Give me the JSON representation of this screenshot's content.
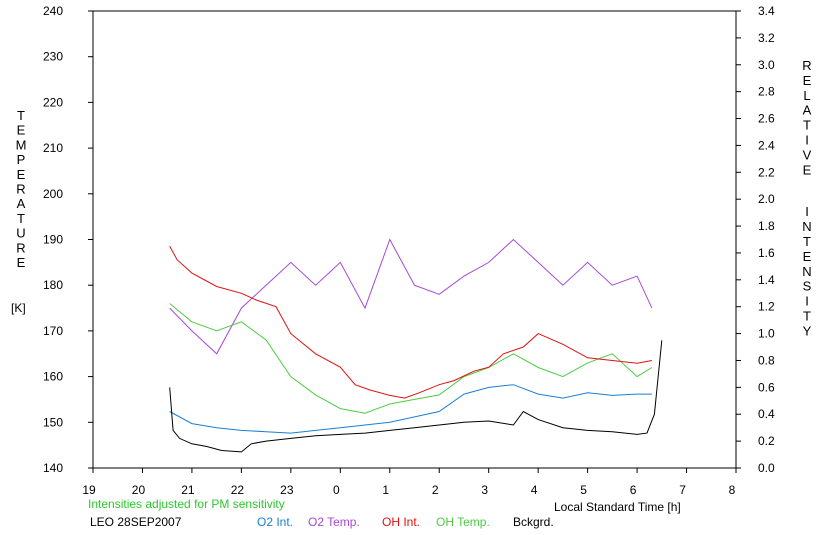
{
  "chart_data": {
    "type": "line",
    "left_axis": {
      "label": "TEMPERATURE",
      "unit": "[K]",
      "ylim": [
        140,
        240
      ],
      "ticks": [
        "140",
        "150",
        "160",
        "170",
        "180",
        "190",
        "200",
        "210",
        "220",
        "230",
        "240"
      ]
    },
    "right_axis": {
      "label": "RELATIVE INTENSITY",
      "ylim": [
        0.0,
        3.4
      ],
      "ticks": [
        "0.0",
        "0.2",
        "0.4",
        "0.6",
        "0.8",
        "1.0",
        "1.2",
        "1.4",
        "1.6",
        "1.8",
        "2.0",
        "2.2",
        "2.4",
        "2.6",
        "2.8",
        "3.0",
        "3.2",
        "3.4"
      ]
    },
    "x_axis": {
      "label": "Local Standard Time [h]",
      "ticks": [
        "19",
        "20",
        "21",
        "22",
        "23",
        "0",
        "1",
        "2",
        "3",
        "4",
        "5",
        "6",
        "7",
        "8"
      ]
    },
    "note": "Intensities adjusted for PM sensitivity",
    "site_date": "LEO 28SEP2007",
    "grid": false,
    "legend_position": "bottom",
    "series": [
      {
        "name": "O2 Int.",
        "axis": "right",
        "color": "#1a7fd6",
        "x": [
          20.55,
          21.0,
          21.5,
          22.0,
          22.5,
          23.0,
          23.5,
          24.0,
          24.5,
          25.0,
          25.5,
          26.0,
          26.5,
          27.0,
          27.5,
          28.0,
          28.5,
          29.0,
          29.5,
          30.0,
          30.3
        ],
        "y": [
          0.42,
          0.33,
          0.3,
          0.28,
          0.27,
          0.26,
          0.28,
          0.3,
          0.32,
          0.34,
          0.38,
          0.42,
          0.55,
          0.6,
          0.62,
          0.55,
          0.52,
          0.56,
          0.54,
          0.55,
          0.55
        ]
      },
      {
        "name": "O2 Temp.",
        "axis": "left",
        "color": "#a64ad6",
        "x": [
          20.55,
          21.0,
          21.5,
          22.0,
          22.5,
          23.0,
          23.5,
          24.0,
          24.5,
          25.0,
          25.5,
          26.0,
          26.5,
          27.0,
          27.5,
          28.0,
          28.5,
          29.0,
          29.5,
          30.0,
          30.3
        ],
        "y": [
          175,
          170,
          165,
          175,
          180,
          185,
          180,
          185,
          175,
          190,
          180,
          178,
          182,
          185,
          190,
          185,
          180,
          185,
          180,
          182,
          175
        ]
      },
      {
        "name": "OH Int.",
        "axis": "right",
        "color": "#e01010",
        "x": [
          20.55,
          20.7,
          21.0,
          21.5,
          22.0,
          22.3,
          22.7,
          23.0,
          23.5,
          24.0,
          24.3,
          24.6,
          25.0,
          25.3,
          25.6,
          26.0,
          26.3,
          26.7,
          27.0,
          27.3,
          27.7,
          28.0,
          28.5,
          29.0,
          29.5,
          30.0,
          30.3
        ],
        "y": [
          1.65,
          1.55,
          1.45,
          1.35,
          1.3,
          1.25,
          1.2,
          1.0,
          0.85,
          0.75,
          0.62,
          0.58,
          0.54,
          0.52,
          0.56,
          0.62,
          0.65,
          0.72,
          0.75,
          0.85,
          0.9,
          1.0,
          0.92,
          0.82,
          0.8,
          0.78,
          0.8
        ]
      },
      {
        "name": "OH Temp.",
        "axis": "left",
        "color": "#4ccc44",
        "x": [
          20.55,
          21.0,
          21.5,
          22.0,
          22.5,
          23.0,
          23.5,
          24.0,
          24.5,
          25.0,
          25.5,
          26.0,
          26.5,
          27.0,
          27.5,
          28.0,
          28.5,
          29.0,
          29.5,
          30.0,
          30.3
        ],
        "y": [
          176,
          172,
          170,
          172,
          168,
          160,
          156,
          153,
          152,
          154,
          155,
          156,
          160,
          162,
          165,
          162,
          160,
          163,
          165,
          160,
          162
        ]
      },
      {
        "name": "Bckgrd.",
        "axis": "right",
        "color": "#000000",
        "x": [
          20.55,
          20.62,
          20.75,
          21.0,
          21.3,
          21.6,
          22.0,
          22.2,
          22.5,
          23.0,
          23.5,
          24.0,
          24.5,
          25.0,
          25.5,
          26.0,
          26.5,
          27.0,
          27.5,
          27.7,
          28.0,
          28.5,
          29.0,
          29.5,
          30.0,
          30.2,
          30.35,
          30.5
        ],
        "y": [
          0.6,
          0.28,
          0.22,
          0.18,
          0.16,
          0.13,
          0.12,
          0.18,
          0.2,
          0.22,
          0.24,
          0.25,
          0.26,
          0.28,
          0.3,
          0.32,
          0.34,
          0.35,
          0.32,
          0.42,
          0.36,
          0.3,
          0.28,
          0.27,
          0.25,
          0.26,
          0.4,
          0.95
        ]
      }
    ]
  }
}
